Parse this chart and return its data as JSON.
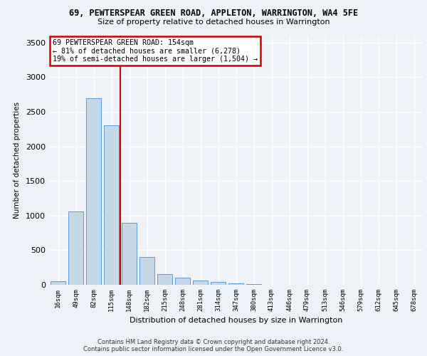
{
  "title1": "69, PEWTERSPEAR GREEN ROAD, APPLETON, WARRINGTON, WA4 5FE",
  "title2": "Size of property relative to detached houses in Warrington",
  "xlabel": "Distribution of detached houses by size in Warrington",
  "ylabel": "Number of detached properties",
  "categories": [
    "16sqm",
    "49sqm",
    "82sqm",
    "115sqm",
    "148sqm",
    "182sqm",
    "215sqm",
    "248sqm",
    "281sqm",
    "314sqm",
    "347sqm",
    "380sqm",
    "413sqm",
    "446sqm",
    "479sqm",
    "513sqm",
    "546sqm",
    "579sqm",
    "612sqm",
    "645sqm",
    "678sqm"
  ],
  "values": [
    50,
    1060,
    2700,
    2300,
    900,
    400,
    155,
    100,
    60,
    38,
    18,
    10,
    5,
    3,
    2,
    1,
    1,
    0,
    0,
    0,
    0
  ],
  "bar_color": "#c5d8e8",
  "bar_edge_color": "#5b9bd5",
  "annotation_lines": [
    "69 PEWTERSPEAR GREEN ROAD: 154sqm",
    "← 81% of detached houses are smaller (6,278)",
    "19% of semi-detached houses are larger (1,504) →"
  ],
  "annotation_box_color": "#ffffff",
  "annotation_box_edge_color": "#cc0000",
  "vline_color": "#cc0000",
  "vline_x": 3.5,
  "ylim": [
    0,
    3600
  ],
  "yticks": [
    0,
    500,
    1000,
    1500,
    2000,
    2500,
    3000,
    3500
  ],
  "background_color": "#eef2f8",
  "grid_color": "#ffffff",
  "footer1": "Contains HM Land Registry data © Crown copyright and database right 2024.",
  "footer2": "Contains public sector information licensed under the Open Government Licence v3.0."
}
